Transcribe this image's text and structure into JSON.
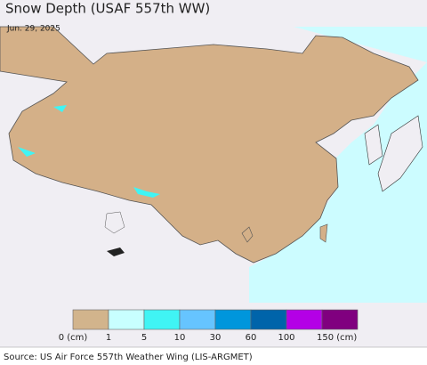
{
  "header": {
    "title": "Snow Depth (USAF 557th WW)",
    "date": "Jun. 29, 2025"
  },
  "legend": {
    "items": [
      {
        "color": "#d2b48c",
        "label": "0 (cm)"
      },
      {
        "color": "#c8ffff",
        "label": "1"
      },
      {
        "color": "#40f4f4",
        "label": "5"
      },
      {
        "color": "#66c4ff",
        "label": "10"
      },
      {
        "color": "#0096dc",
        "label": "30"
      },
      {
        "color": "#0064aa",
        "label": "60"
      },
      {
        "color": "#b400e6",
        "label": "100"
      },
      {
        "color": "#80007f",
        "label": "150 (cm)"
      }
    ]
  },
  "source": "Source: US Air Force 557th Weather Wing (LIS-ARGMET)"
}
